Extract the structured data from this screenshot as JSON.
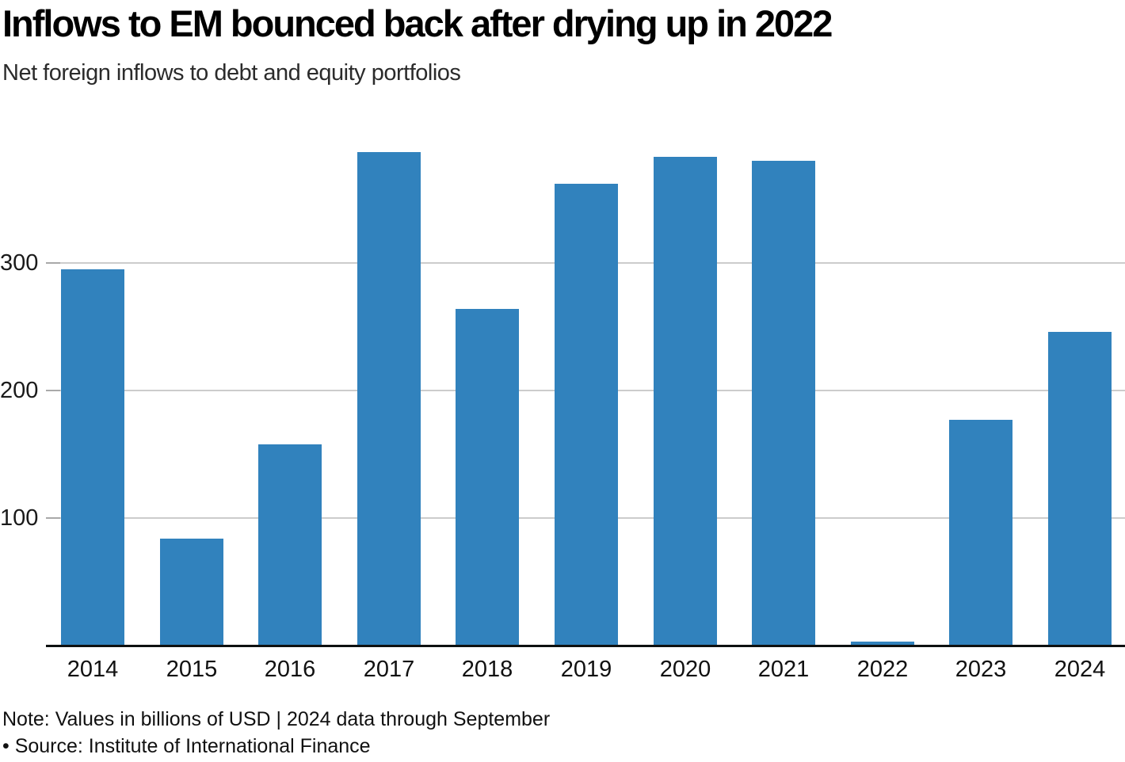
{
  "header": {
    "title": "Inflows to EM bounced back after drying up in 2022",
    "subtitle": "Net foreign inflows to debt and equity portfolios"
  },
  "footer": {
    "note": "Note: Values in billions of USD | 2024 data through September",
    "source": "• Source: Institute of International Finance"
  },
  "colors": {
    "bar": "#3182bd",
    "gridline": "#cccccc",
    "tick": "#a9a9a9",
    "axis": "#0e1111"
  },
  "chart_data": {
    "type": "bar",
    "title": "Inflows to EM bounced back after drying up in 2022",
    "subtitle": "Net foreign inflows to debt and equity portfolios",
    "categories": [
      "2014",
      "2015",
      "2016",
      "2017",
      "2018",
      "2019",
      "2020",
      "2021",
      "2022",
      "2023",
      "2024"
    ],
    "values": [
      295,
      84,
      158,
      387,
      264,
      362,
      383,
      380,
      3,
      177,
      246
    ],
    "series_name": "Net foreign inflows (billions USD)",
    "xlabel": "",
    "ylabel": "",
    "yticks": [
      100,
      200,
      300
    ],
    "ylim": [
      0,
      420
    ],
    "grid": "horizontal-only",
    "legend": "none",
    "bar_color": "#3182bd",
    "note": "Note: Values in billions of USD | 2024 data through September",
    "source": "• Source: Institute of International Finance"
  }
}
